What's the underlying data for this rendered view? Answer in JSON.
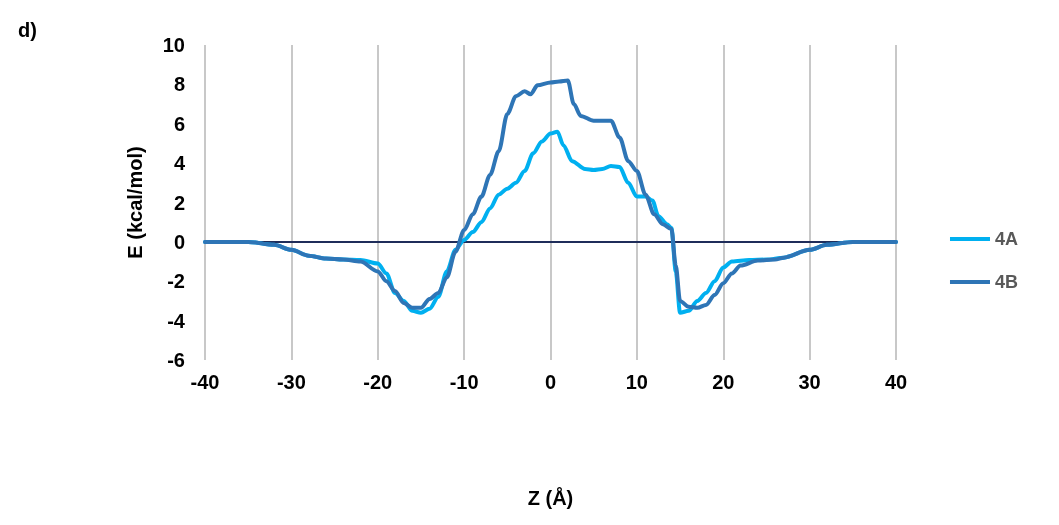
{
  "chart_data": {
    "type": "line",
    "xlabel": "Z (Å)",
    "ylabel": "E (kcal/mol)",
    "annotations": [
      "d)"
    ],
    "xlim": [
      -40,
      40
    ],
    "xticks": [
      -40,
      -30,
      -20,
      -10,
      0,
      10,
      20,
      30,
      40
    ],
    "ylim": [
      -6,
      10
    ],
    "yticks": [
      -6,
      -4,
      -2,
      0,
      2,
      4,
      6,
      8,
      10
    ],
    "grid": "x",
    "legend": "right",
    "marker": "none",
    "line_style": "solid",
    "series": [
      {
        "name": "4A",
        "color": "#00b0f0",
        "x": [
          -40,
          -35,
          -32,
          -30,
          -28,
          -26,
          -24,
          -22,
          -20,
          -19,
          -18,
          -17,
          -16,
          -15,
          -14,
          -13,
          -12,
          -11,
          -10,
          -9,
          -8,
          -7,
          -6,
          -5,
          -4,
          -3,
          -2,
          -1,
          0,
          0.8,
          1.5,
          2.5,
          4,
          5,
          6,
          7,
          8,
          9,
          10,
          11,
          11.8,
          12.5,
          13.5,
          14,
          14.5,
          15,
          16,
          17,
          18,
          19,
          20,
          21,
          23,
          25,
          27,
          30,
          32,
          35,
          40
        ],
        "values": [
          0,
          0,
          -0.15,
          -0.4,
          -0.7,
          -0.85,
          -0.9,
          -0.92,
          -1.1,
          -1.6,
          -2.6,
          -3.0,
          -3.5,
          -3.6,
          -3.4,
          -2.8,
          -1.5,
          -0.4,
          0.1,
          0.5,
          1.0,
          1.7,
          2.4,
          2.7,
          3.0,
          3.6,
          4.5,
          5.1,
          5.5,
          5.6,
          4.9,
          4.1,
          3.7,
          3.65,
          3.7,
          3.85,
          3.8,
          3.0,
          2.3,
          2.3,
          2.1,
          1.3,
          0.9,
          0.7,
          -1.5,
          -3.6,
          -3.5,
          -3.0,
          -2.6,
          -2.0,
          -1.3,
          -1.0,
          -0.92,
          -0.9,
          -0.8,
          -0.4,
          -0.15,
          0,
          0
        ]
      },
      {
        "name": "4B",
        "color": "#2e75b6",
        "x": [
          -40,
          -35,
          -32,
          -30,
          -28,
          -26,
          -24,
          -22,
          -20,
          -19,
          -18,
          -17,
          -16,
          -15,
          -14,
          -13,
          -12,
          -11,
          -10,
          -9,
          -8,
          -7,
          -6,
          -5,
          -4,
          -3,
          -2.3,
          -1.5,
          0,
          1,
          2,
          2.7,
          3.5,
          5,
          6,
          7,
          8,
          9,
          10,
          11,
          12,
          13,
          14,
          14.5,
          15,
          16,
          17,
          18,
          19,
          20,
          21,
          22,
          24,
          26,
          27,
          30,
          32,
          35,
          40
        ],
        "values": [
          0,
          0,
          -0.15,
          -0.4,
          -0.7,
          -0.85,
          -0.9,
          -1.0,
          -1.5,
          -2.0,
          -2.5,
          -3.1,
          -3.35,
          -3.35,
          -2.9,
          -2.6,
          -1.8,
          -0.5,
          0.6,
          1.4,
          2.3,
          3.4,
          4.6,
          6.5,
          7.4,
          7.65,
          7.5,
          7.95,
          8.1,
          8.15,
          8.2,
          7.0,
          6.4,
          6.15,
          6.15,
          6.15,
          5.3,
          4.1,
          3.6,
          2.4,
          1.4,
          0.9,
          0.65,
          -1.2,
          -3.0,
          -3.3,
          -3.35,
          -3.2,
          -2.7,
          -2.1,
          -1.6,
          -1.2,
          -0.95,
          -0.9,
          -0.8,
          -0.4,
          -0.15,
          0,
          0
        ]
      }
    ]
  }
}
